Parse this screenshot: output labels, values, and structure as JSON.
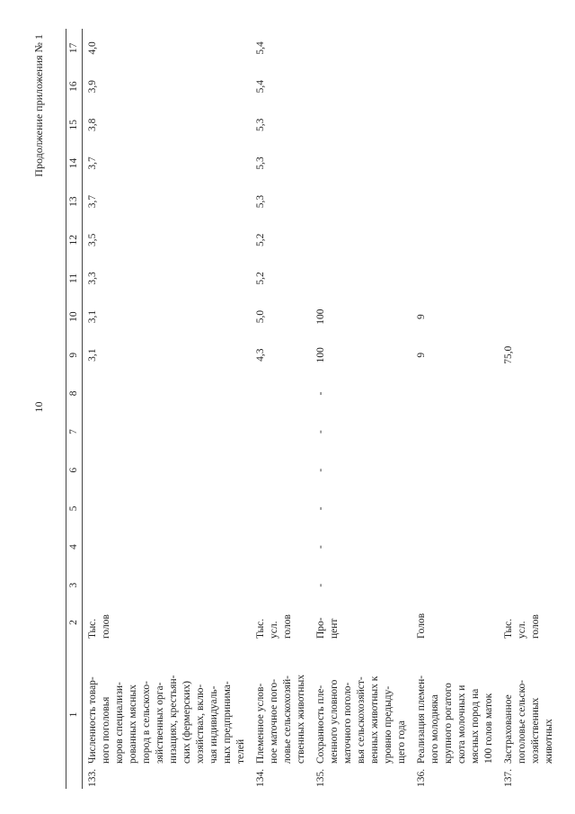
{
  "header": {
    "page_number": "10",
    "continuation": "Продолжение приложения № 1"
  },
  "table": {
    "columns": [
      "1",
      "2",
      "3",
      "4",
      "5",
      "6",
      "7",
      "8",
      "9",
      "10",
      "11",
      "12",
      "13",
      "14",
      "15",
      "16",
      "17"
    ],
    "rows": [
      {
        "number": "133.",
        "label": [
          "Численность товар-",
          "ного поголовья",
          "коров специализи-",
          "рованных мясных",
          "пород в сельскохо-",
          "зяйственных орга-",
          "низациях, крестьян-",
          "ских (фермерских)",
          "хозяйствах, вклю-",
          "чая индивидуаль-",
          "ных предпринима-",
          "телей"
        ],
        "unit": [
          "Тыс.",
          "голов"
        ],
        "values": [
          null,
          null,
          null,
          null,
          null,
          null,
          "3,1",
          "3,1",
          "3,3",
          "3,5",
          "3,7",
          "3,7",
          "3,8",
          "3,9",
          "4,0"
        ]
      },
      {
        "number": "134.",
        "label": [
          "Племенное услов-",
          "ное маточное пого-",
          "ловье сельскохозяй-",
          "ственных животных"
        ],
        "unit": [
          "Тыс.",
          "усл.",
          "голов"
        ],
        "values": [
          null,
          null,
          null,
          null,
          null,
          null,
          "4,3",
          "5,0",
          "5,2",
          "5,2",
          "5,3",
          "5,3",
          "5,3",
          "5,4",
          "5,4"
        ]
      },
      {
        "number": "135.",
        "label": [
          "Сохранность пле-",
          "менного условного",
          "маточного поголо-",
          "вья сельскохозяйст-",
          "венных животных к",
          "уровню предыду-",
          "щего года"
        ],
        "unit": [
          "Про-",
          "цент"
        ],
        "values": [
          "-",
          "-",
          "-",
          "-",
          "-",
          "-",
          "100",
          "100",
          null,
          null,
          null,
          null,
          null,
          null,
          null
        ]
      },
      {
        "number": "136.",
        "label": [
          "Реализация племен-",
          "ного молодняка",
          "крупного рогатого",
          "скота молочных и",
          "мясных пород на",
          "100 голов маток"
        ],
        "unit": [
          "Голов"
        ],
        "values": [
          null,
          null,
          null,
          null,
          null,
          null,
          "9",
          "9",
          null,
          null,
          null,
          null,
          null,
          null,
          null
        ]
      },
      {
        "number": "137.",
        "label": [
          "Застрахованное",
          "поголовье сельско-",
          "хозяйственных",
          "животных"
        ],
        "unit": [
          "Тыс.",
          "усл.",
          "голов"
        ],
        "values": [
          null,
          null,
          null,
          null,
          null,
          null,
          "75,0",
          null,
          null,
          null,
          null,
          null,
          null,
          null,
          null
        ]
      }
    ]
  }
}
